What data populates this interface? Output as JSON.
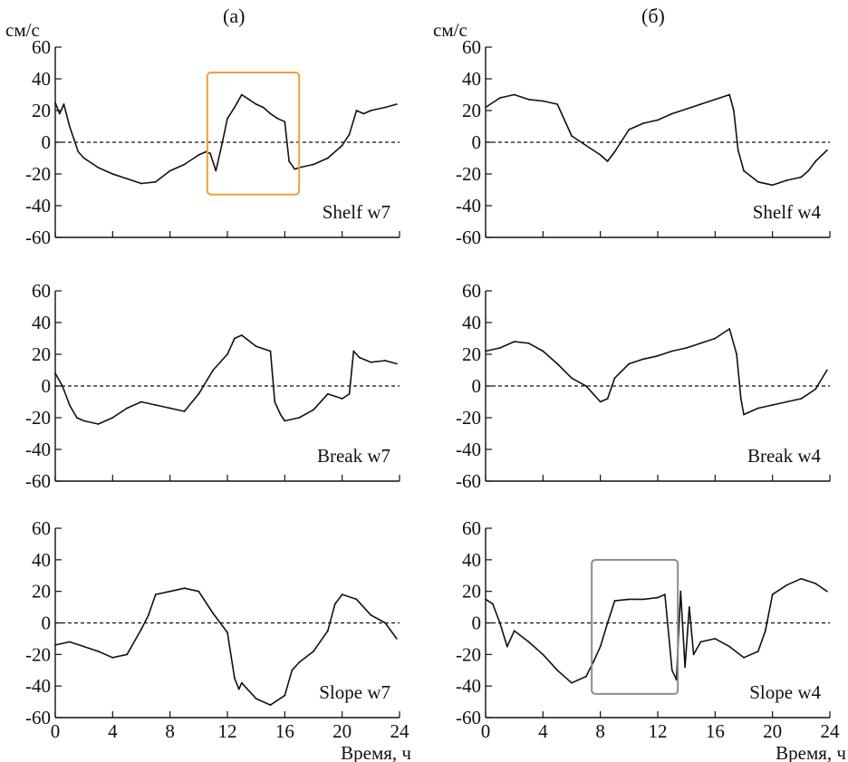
{
  "figure": {
    "columns": [
      {
        "label": "(a)",
        "unit": "см/с"
      },
      {
        "label": "(б)",
        "unit": "см/с"
      }
    ],
    "x_axis_label": "Время, ч"
  },
  "chart_data": [
    {
      "type": "line",
      "panel": "Shelf w7",
      "column": "(a)",
      "xlim": [
        0,
        24
      ],
      "ylim": [
        -60,
        60
      ],
      "xticks": [
        0,
        4,
        8,
        12,
        16,
        20,
        24
      ],
      "yticks": [
        -60,
        -40,
        -20,
        0,
        20,
        40,
        60
      ],
      "zero_line": "dashed",
      "highlight_box": {
        "x": [
          10.6,
          17.0
        ],
        "y": [
          -33,
          44
        ],
        "color": "#f0a030"
      },
      "series": [
        {
          "x": [
            0,
            0.3,
            0.6,
            1,
            1.3,
            1.6,
            2,
            3,
            4,
            5,
            6,
            7,
            8,
            9,
            10,
            10.5,
            10.8,
            11.2,
            11.6,
            12,
            12.5,
            13,
            13.5,
            14,
            14.5,
            15,
            15.5,
            16,
            16.3,
            16.7,
            17,
            18,
            19,
            20,
            20.5,
            21,
            21.5,
            22,
            23,
            23.8
          ],
          "y": [
            25,
            18,
            24,
            10,
            2,
            -6,
            -10,
            -16,
            -20,
            -23,
            -26,
            -25,
            -18,
            -14,
            -8,
            -6,
            -7,
            -18,
            -2,
            15,
            22,
            30,
            27,
            24,
            22,
            18,
            15,
            13,
            -12,
            -17,
            -16,
            -14,
            -10,
            -2,
            5,
            20,
            18,
            20,
            22,
            24
          ]
        }
      ]
    },
    {
      "type": "line",
      "panel": "Shelf w4",
      "column": "(б)",
      "xlim": [
        0,
        24
      ],
      "ylim": [
        -60,
        60
      ],
      "xticks": [
        0,
        4,
        8,
        12,
        16,
        20,
        24
      ],
      "yticks": [
        -60,
        -40,
        -20,
        0,
        20,
        40,
        60
      ],
      "zero_line": "dashed",
      "series": [
        {
          "x": [
            0,
            1,
            2,
            3,
            4,
            5,
            5.6,
            6,
            7,
            8,
            8.5,
            9,
            10,
            11,
            12,
            13,
            14,
            15,
            16,
            17,
            17.3,
            17.6,
            18,
            19,
            20,
            21,
            22,
            22.5,
            23,
            23.8
          ],
          "y": [
            22,
            28,
            30,
            27,
            26,
            24,
            12,
            4,
            -2,
            -8,
            -12,
            -6,
            8,
            12,
            14,
            18,
            21,
            24,
            27,
            30,
            20,
            -5,
            -18,
            -25,
            -27,
            -24,
            -22,
            -18,
            -12,
            -5
          ]
        }
      ]
    },
    {
      "type": "line",
      "panel": "Break w7",
      "column": "(a)",
      "xlim": [
        0,
        24
      ],
      "ylim": [
        -60,
        60
      ],
      "xticks": [
        0,
        4,
        8,
        12,
        16,
        20,
        24
      ],
      "yticks": [
        -60,
        -40,
        -20,
        0,
        20,
        40,
        60
      ],
      "zero_line": "dashed",
      "series": [
        {
          "x": [
            0,
            0.5,
            1,
            1.5,
            2,
            3,
            4,
            5,
            6,
            7,
            8,
            9,
            10,
            11,
            12,
            12.5,
            13,
            14,
            15,
            15.3,
            15.7,
            16,
            17,
            18,
            19,
            20,
            20.5,
            20.8,
            21.2,
            22,
            23,
            23.8
          ],
          "y": [
            8,
            0,
            -12,
            -20,
            -22,
            -24,
            -20,
            -14,
            -10,
            -12,
            -14,
            -16,
            -5,
            10,
            20,
            30,
            32,
            25,
            22,
            -10,
            -18,
            -22,
            -20,
            -15,
            -5,
            -8,
            -5,
            22,
            18,
            15,
            16,
            14
          ]
        }
      ]
    },
    {
      "type": "line",
      "panel": "Break w4",
      "column": "(б)",
      "xlim": [
        0,
        24
      ],
      "ylim": [
        -60,
        60
      ],
      "xticks": [
        0,
        4,
        8,
        12,
        16,
        20,
        24
      ],
      "yticks": [
        -60,
        -40,
        -20,
        0,
        20,
        40,
        60
      ],
      "zero_line": "dashed",
      "series": [
        {
          "x": [
            0,
            1,
            2,
            3,
            4,
            5,
            6,
            7,
            7.5,
            8,
            8.5,
            9,
            10,
            11,
            12,
            13,
            14,
            15,
            16,
            17,
            17.5,
            17.8,
            18,
            19,
            20,
            21,
            22,
            23,
            23.8
          ],
          "y": [
            22,
            24,
            28,
            27,
            22,
            14,
            5,
            0,
            -5,
            -10,
            -8,
            5,
            14,
            17,
            19,
            22,
            24,
            27,
            30,
            36,
            20,
            -8,
            -18,
            -14,
            -12,
            -10,
            -8,
            -2,
            10
          ]
        }
      ]
    },
    {
      "type": "line",
      "panel": "Slope w7",
      "column": "(a)",
      "xlim": [
        0,
        24
      ],
      "ylim": [
        -60,
        60
      ],
      "xticks": [
        0,
        4,
        8,
        12,
        16,
        20,
        24
      ],
      "yticks": [
        -60,
        -40,
        -20,
        0,
        20,
        40,
        60
      ],
      "zero_line": "dashed",
      "series": [
        {
          "x": [
            0,
            1,
            2,
            3,
            4,
            5,
            5.5,
            6,
            6.5,
            7,
            8,
            9,
            10,
            11,
            11.5,
            12,
            12.5,
            12.8,
            13,
            14,
            15,
            16,
            16.5,
            17,
            18,
            19,
            19.5,
            20,
            21,
            22,
            23,
            23.8
          ],
          "y": [
            -14,
            -12,
            -15,
            -18,
            -22,
            -20,
            -12,
            -4,
            5,
            18,
            20,
            22,
            20,
            6,
            0,
            -6,
            -35,
            -42,
            -38,
            -48,
            -52,
            -46,
            -30,
            -25,
            -18,
            -5,
            12,
            18,
            15,
            5,
            0,
            -10
          ]
        }
      ]
    },
    {
      "type": "line",
      "panel": "Slope w4",
      "column": "(б)",
      "xlim": [
        0,
        24
      ],
      "ylim": [
        -60,
        60
      ],
      "xticks": [
        0,
        4,
        8,
        12,
        16,
        20,
        24
      ],
      "yticks": [
        -60,
        -40,
        -20,
        0,
        20,
        40,
        60
      ],
      "zero_line": "dashed",
      "highlight_box": {
        "x": [
          7.4,
          13.4
        ],
        "y": [
          -45,
          40
        ],
        "color": "#8c8c8c"
      },
      "series": [
        {
          "x": [
            0,
            0.5,
            1,
            1.5,
            2,
            3,
            4,
            5,
            6,
            7,
            7.5,
            8,
            8.5,
            9,
            10,
            11,
            12,
            12.5,
            13,
            13.3,
            13.6,
            13.9,
            14.2,
            14.5,
            15,
            16,
            17,
            18,
            19,
            19.5,
            20,
            21,
            22,
            23,
            23.8
          ],
          "y": [
            15,
            12,
            0,
            -15,
            -5,
            -12,
            -20,
            -30,
            -38,
            -34,
            -25,
            -15,
            0,
            14,
            15,
            15,
            16,
            18,
            -30,
            -36,
            20,
            -28,
            10,
            -20,
            -12,
            -10,
            -15,
            -22,
            -18,
            -5,
            18,
            24,
            28,
            25,
            20
          ]
        }
      ]
    }
  ]
}
